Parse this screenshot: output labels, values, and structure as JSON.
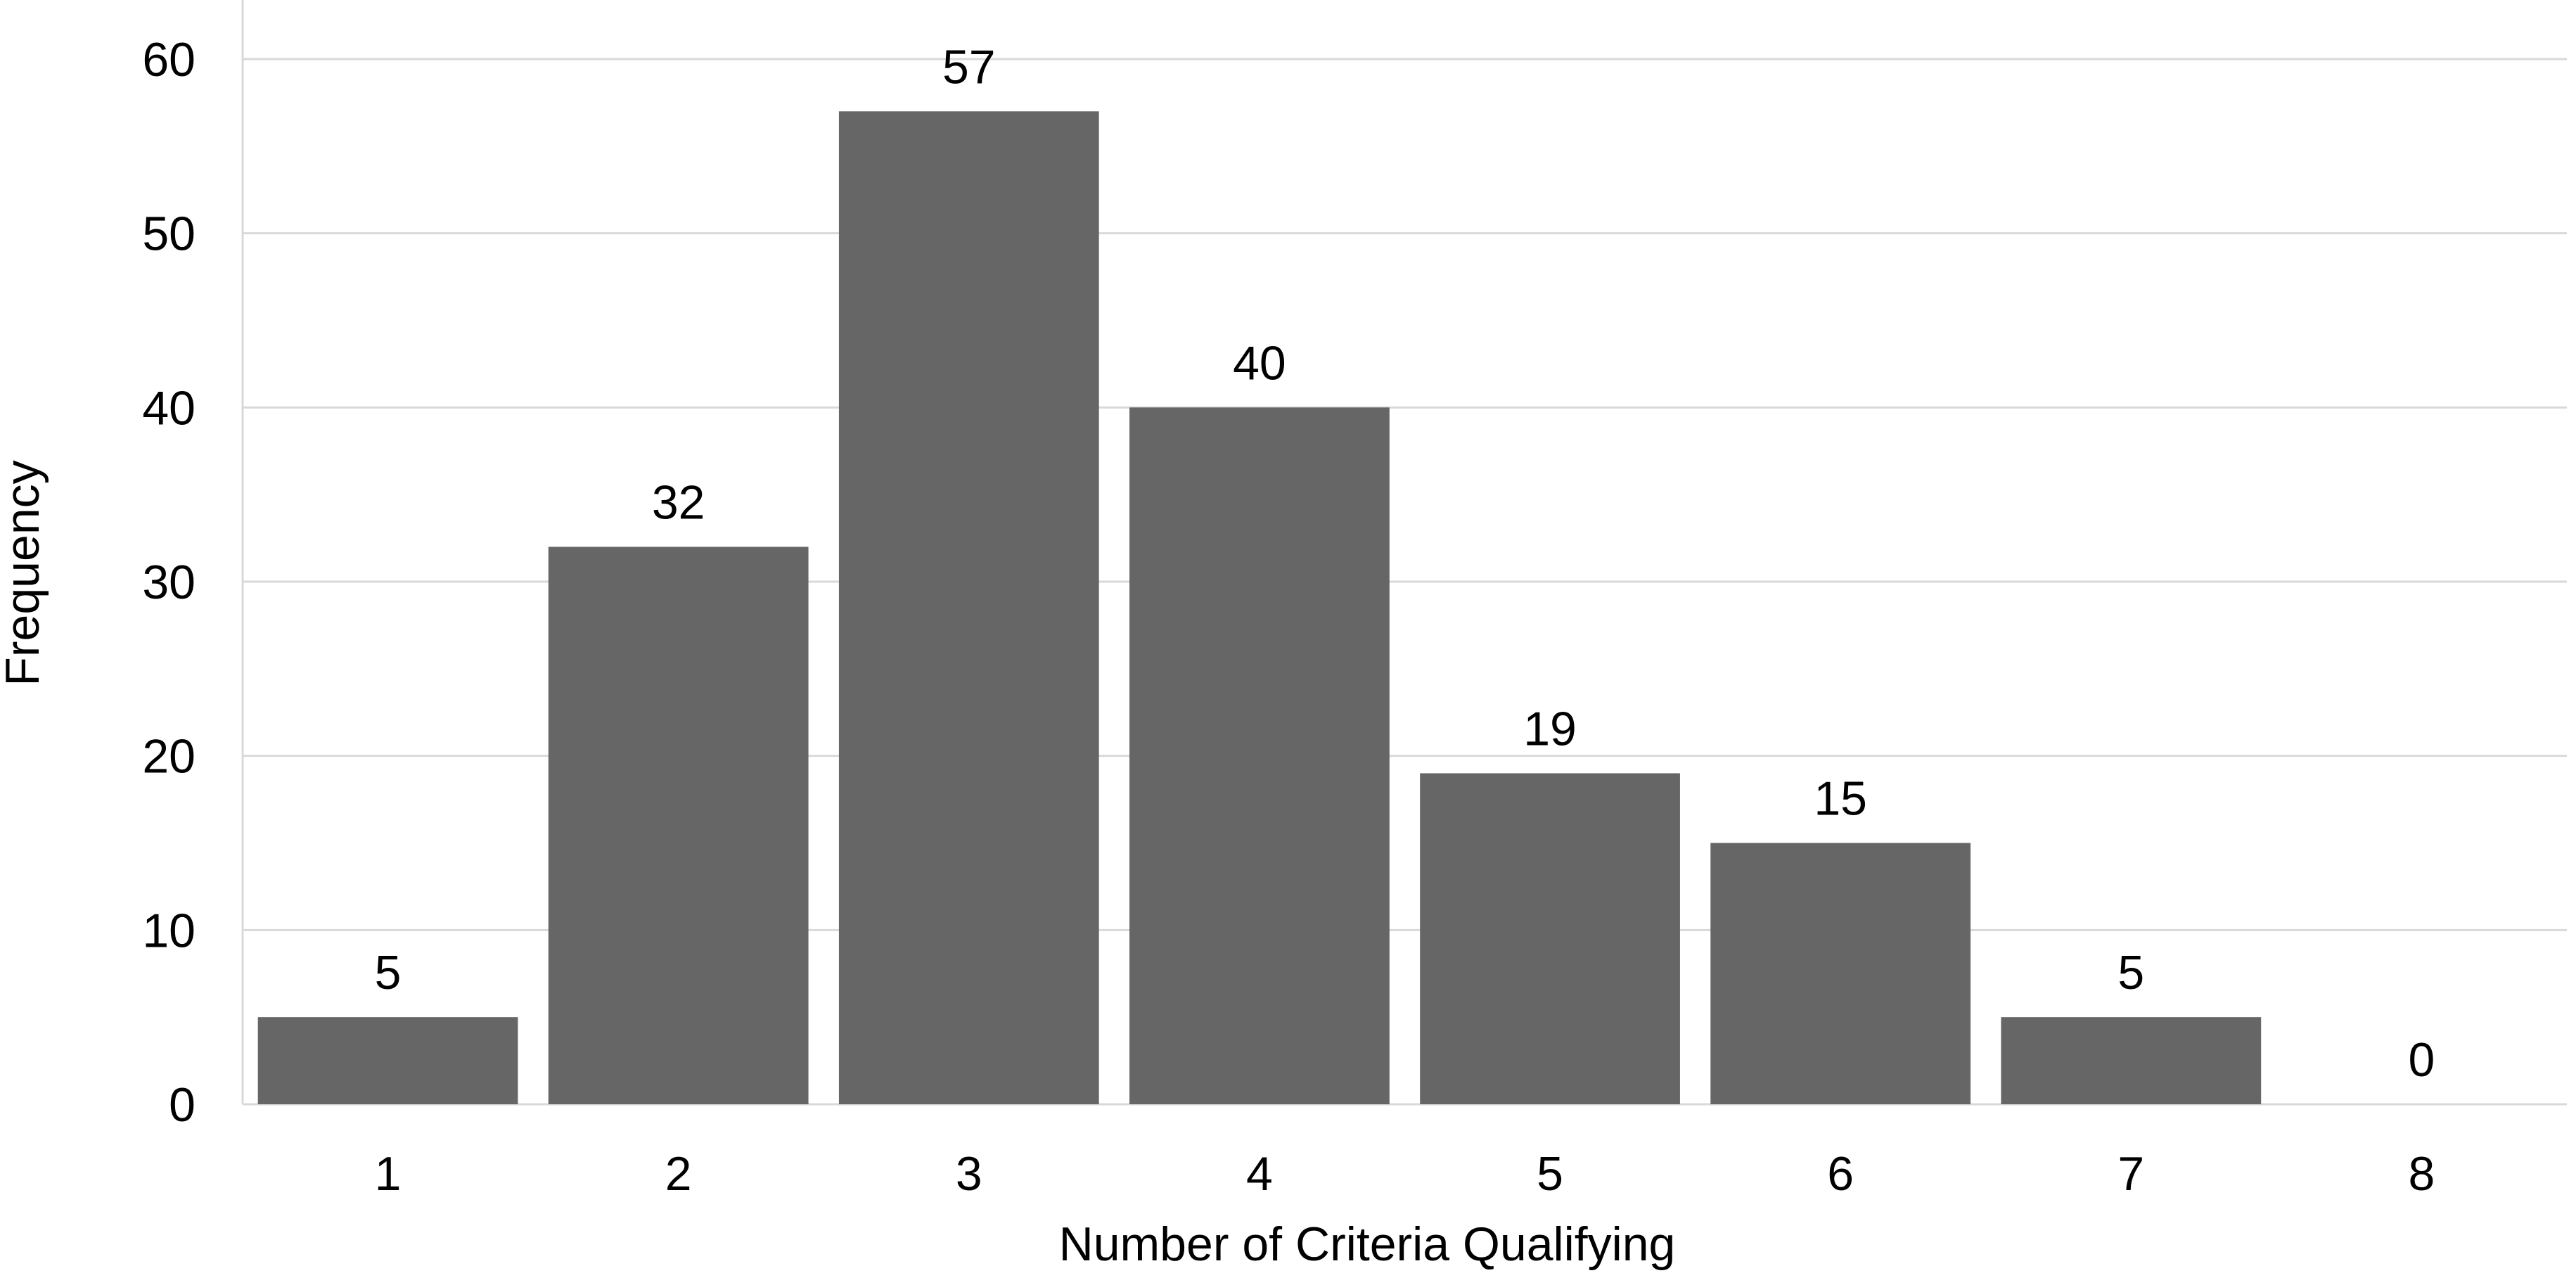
{
  "chart_data": {
    "type": "bar",
    "title": "",
    "xlabel": "Number of Criteria Qualifying",
    "ylabel": "Frequency",
    "categories": [
      "1",
      "2",
      "3",
      "4",
      "5",
      "6",
      "7",
      "8"
    ],
    "values": [
      5,
      32,
      57,
      40,
      19,
      15,
      5,
      0
    ],
    "data_labels": [
      "5",
      "32",
      "57",
      "40",
      "19",
      "15",
      "5",
      "0"
    ],
    "yticks": [
      "0",
      "10",
      "20",
      "30",
      "40",
      "50",
      "60"
    ],
    "ylim": [
      0,
      60
    ],
    "grid": "horizontal",
    "legend": "none",
    "colors": {
      "bar": "#666666",
      "grid": "#d9d9d9",
      "axis": "#d9d9d9",
      "text": "#000000"
    }
  }
}
